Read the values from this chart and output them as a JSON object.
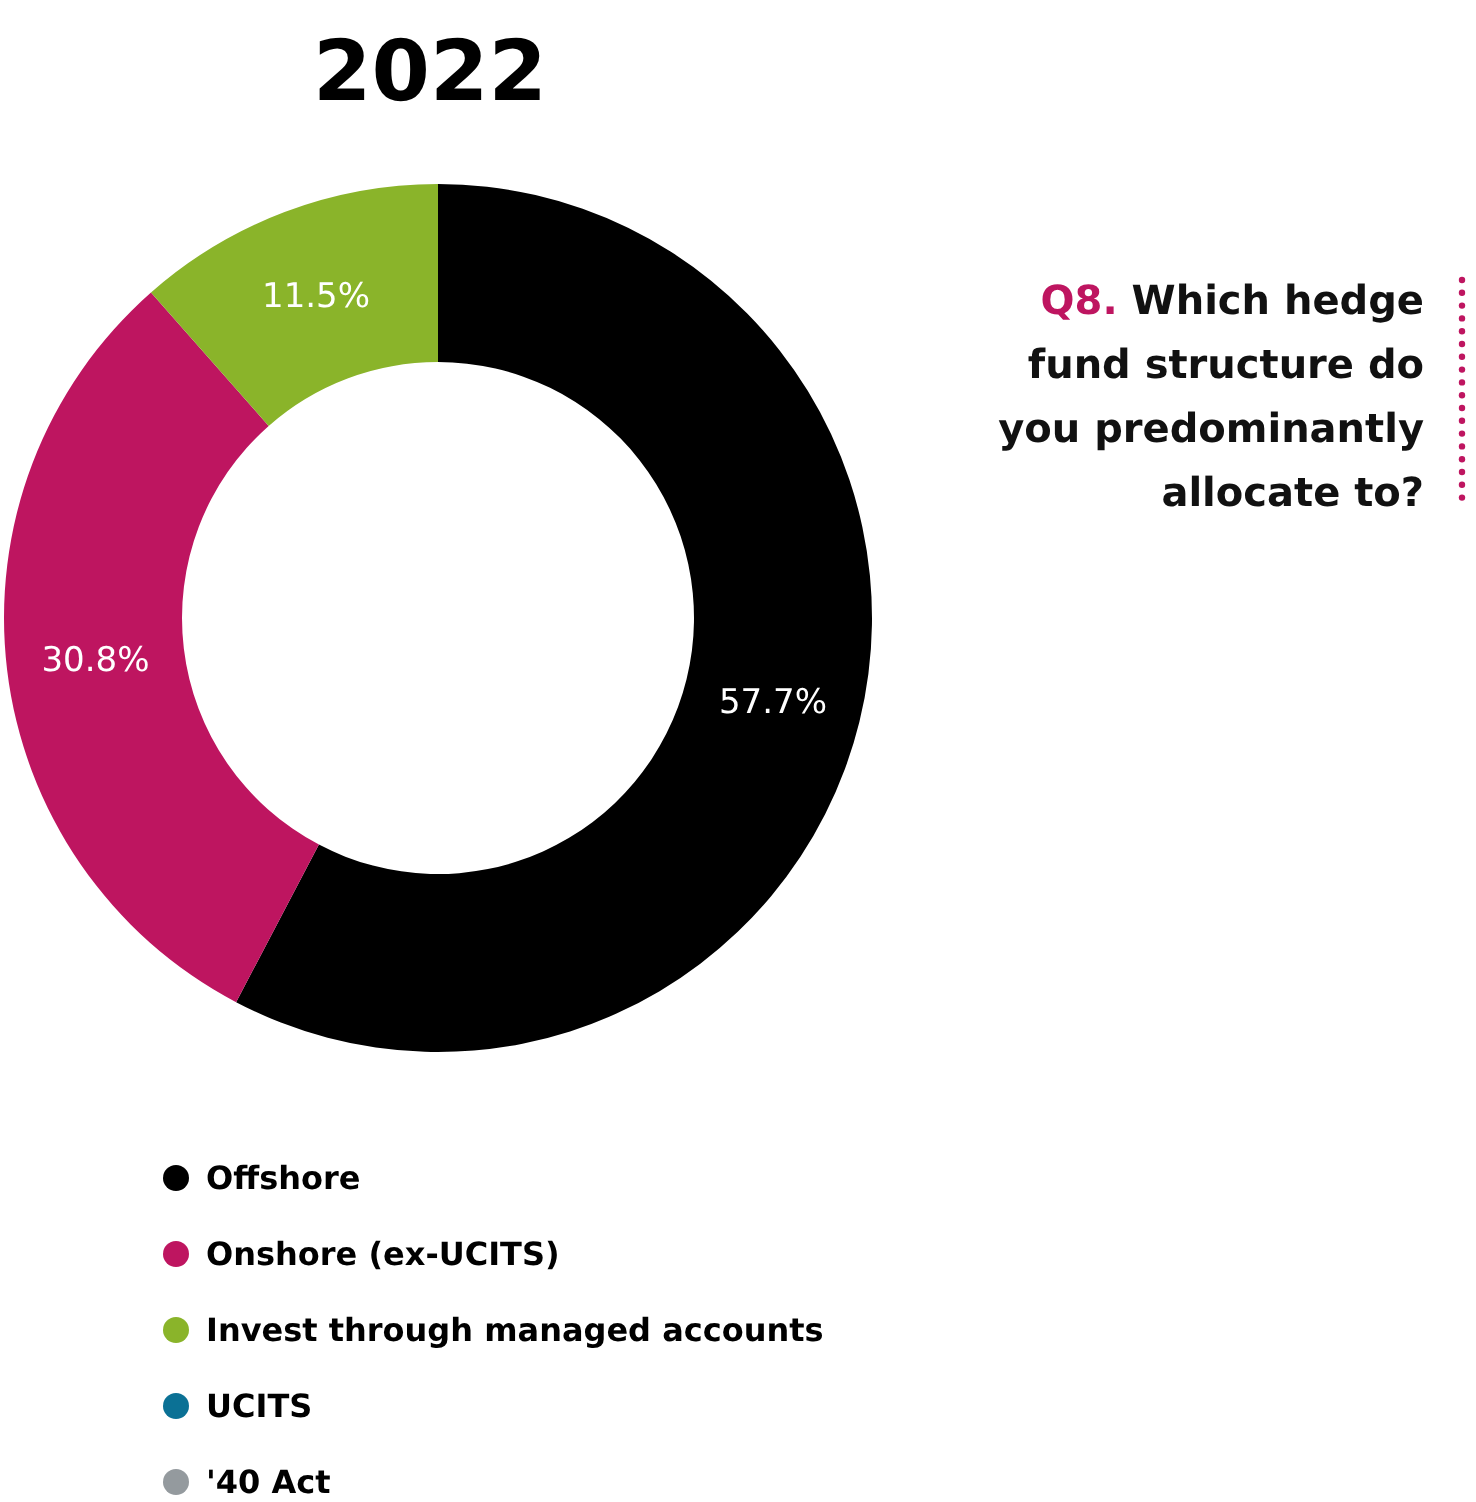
{
  "chart_data": {
    "type": "donut",
    "title": "2022",
    "categories": [
      "Offshore",
      "Onshore (ex-UCITS)",
      "Invest through managed accounts",
      "UCITS",
      "'40 Act"
    ],
    "values": [
      57.7,
      30.8,
      11.5,
      0,
      0
    ],
    "colors": [
      "#000000",
      "#be1560",
      "#8ab42a",
      "#0b7195",
      "#949a9e"
    ],
    "value_labels": [
      "57.7%",
      "30.8%",
      "11.5%",
      null,
      null
    ],
    "legend": "bottom",
    "annotations": [
      "Q8. Which hedge fund structure do you predominantly allocate to?"
    ]
  }
}
